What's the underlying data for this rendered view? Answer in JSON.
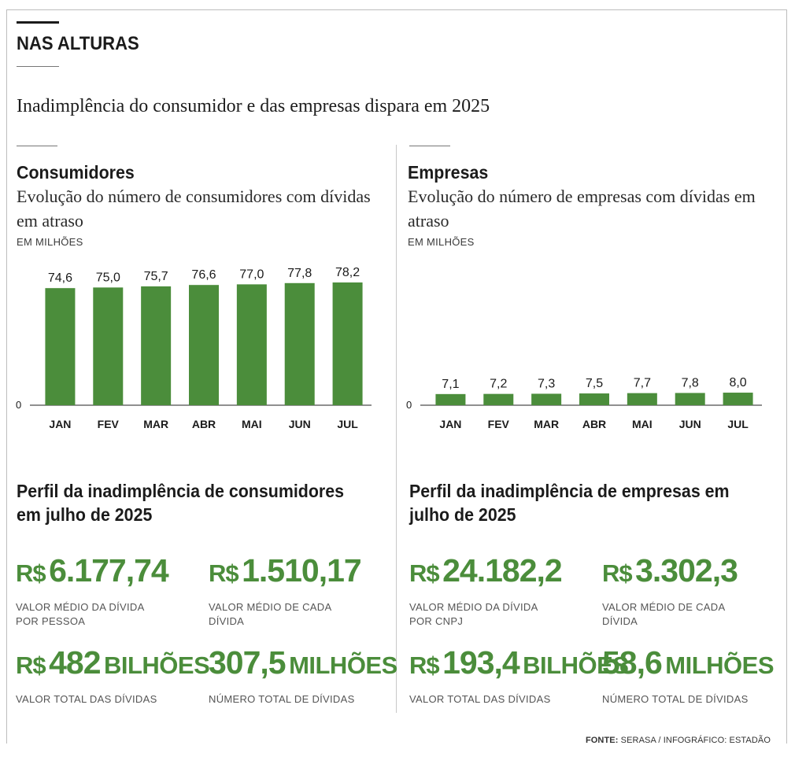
{
  "header": {
    "kicker": "NAS ALTURAS",
    "headline": "Inadimplência do consumidor e das empresas dispara em 2025"
  },
  "consumers": {
    "title": "Consumidores",
    "subtitle": "Evolução do número de consumidores com dívidas em atraso",
    "unit": "EM MILHÕES"
  },
  "companies": {
    "title": "Empresas",
    "subtitle": "Evolução do número de empresas com dívidas em atraso",
    "unit": "EM MILHÕES"
  },
  "chart_data": [
    {
      "type": "bar",
      "title": "Consumidores",
      "subtitle": "Evolução do número de consumidores com dívidas em atraso",
      "ylabel": "EM MILHÕES",
      "xlabel": "",
      "categories": [
        "JAN",
        "FEV",
        "MAR",
        "ABR",
        "MAI",
        "JUN",
        "JUL"
      ],
      "values": [
        74.6,
        75.0,
        75.7,
        76.6,
        77.0,
        77.8,
        78.2
      ],
      "value_labels": [
        "74,6",
        "75,0",
        "75,7",
        "76,6",
        "77,0",
        "77,8",
        "78,2"
      ],
      "ylim": [
        0,
        78.2
      ],
      "zero_label": "0",
      "grid": false,
      "color": "#4b8d3b"
    },
    {
      "type": "bar",
      "title": "Empresas",
      "subtitle": "Evolução do número de empresas com dívidas em atraso",
      "ylabel": "EM MILHÕES",
      "xlabel": "",
      "categories": [
        "JAN",
        "FEV",
        "MAR",
        "ABR",
        "MAI",
        "JUN",
        "JUL"
      ],
      "values": [
        7.1,
        7.2,
        7.3,
        7.5,
        7.7,
        7.8,
        8.0
      ],
      "value_labels": [
        "7,1",
        "7,2",
        "7,3",
        "7,5",
        "7,7",
        "7,8",
        "8,0"
      ],
      "ylim": [
        0,
        78.2
      ],
      "zero_label": "0",
      "grid": false,
      "color": "#4b8d3b"
    }
  ],
  "profiles": {
    "consumers": {
      "title": "Perfil da inadimplência de consumidores em julho de 2025",
      "metrics": [
        {
          "currency": "R$",
          "value": "6.177,74",
          "suffix": "",
          "label": "VALOR MÉDIO DA DÍVIDA POR PESSOA"
        },
        {
          "currency": "R$",
          "value": "1.510,17",
          "suffix": "",
          "label": "VALOR MÉDIO DE CADA DÍVIDA"
        },
        {
          "currency": "R$",
          "value": "482",
          "suffix": "BILHÕES",
          "label": "VALOR TOTAL DAS DÍVIDAS"
        },
        {
          "currency": "",
          "value": "307,5",
          "suffix": "MILHÕES",
          "label": "NÚMERO TOTAL DE DÍVIDAS"
        }
      ]
    },
    "companies": {
      "title": "Perfil da inadimplência de empresas em julho de 2025",
      "metrics": [
        {
          "currency": "R$",
          "value": "24.182,2",
          "suffix": "",
          "label": "VALOR MÉDIO DA DÍVIDA POR CNPJ"
        },
        {
          "currency": "R$",
          "value": "3.302,3",
          "suffix": "",
          "label": "VALOR MÉDIO DE CADA DÍVIDA"
        },
        {
          "currency": "R$",
          "value": "193,4",
          "suffix": "BILHÕES",
          "label": "VALOR TOTAL DAS DÍVIDAS"
        },
        {
          "currency": "",
          "value": "58,6",
          "suffix": "MILHÕES",
          "label": "NÚMERO TOTAL DE DÍVIDAS"
        }
      ]
    }
  },
  "footer": {
    "source_label": "FONTE:",
    "source_text": " SERASA / INFOGRÁFICO: ESTADÃO"
  },
  "colors": {
    "accent": "#4b8d3b",
    "text": "#1b1b1b",
    "muted": "#555555"
  }
}
